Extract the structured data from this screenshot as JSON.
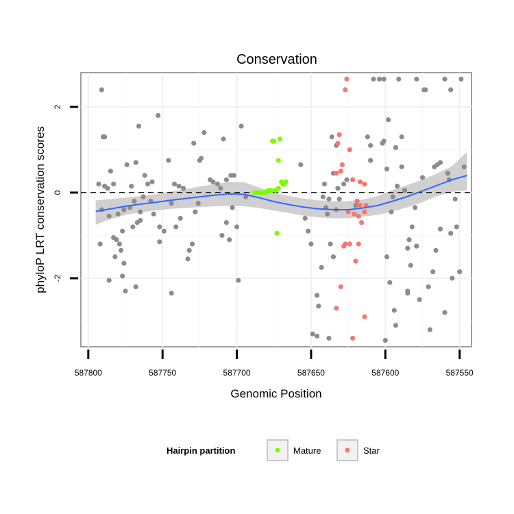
{
  "chart_data": {
    "type": "scatter",
    "title": "Conservation",
    "xlabel": "Genomic Position",
    "ylabel": "phyloP LRT conservation scores",
    "xlim": [
      587805,
      587542
    ],
    "ylim": [
      -3.6,
      2.8
    ],
    "x_reversed": true,
    "x_ticks": [
      587800,
      587750,
      587700,
      587650,
      587600,
      587550
    ],
    "x_tick_labels": [
      "587800",
      "587750",
      "587700",
      "587650",
      "587600",
      "587550"
    ],
    "y_ticks": [
      -2,
      0,
      2
    ],
    "y_tick_labels": [
      "-2",
      "0",
      "2"
    ],
    "reference_line_y": 0,
    "grid": true,
    "legend": {
      "title": "Hairpin partition",
      "position": "bottom",
      "entries": [
        {
          "label": "Mature",
          "color": "#7cfc00"
        },
        {
          "label": "Star",
          "color": "#f8766d"
        }
      ]
    },
    "colors": {
      "other": "#8c8c8c",
      "Mature": "#7cfc00",
      "Star": "#f8766d",
      "smooth": "#3366ff",
      "band": "#c8c8c8"
    },
    "series": [
      {
        "name": "",
        "group": "other",
        "points": [
          [
            587791,
            2.4
          ],
          [
            587790,
            1.3
          ],
          [
            587789,
            1.3
          ],
          [
            587793,
            0.2
          ],
          [
            587789,
            0.15
          ],
          [
            587787,
            0.1
          ],
          [
            587785,
            0.5
          ],
          [
            587783,
            0.2
          ],
          [
            587791,
            -0.4
          ],
          [
            587786,
            -0.55
          ],
          [
            587792,
            -1.2
          ],
          [
            587786,
            -2.05
          ],
          [
            587783,
            -1.05
          ],
          [
            587781,
            -1.1
          ],
          [
            587779,
            -1.2
          ],
          [
            587778,
            -1.35
          ],
          [
            587782,
            -1.5
          ],
          [
            587776,
            -1.65
          ],
          [
            587777,
            -1.95
          ],
          [
            587775,
            -2.3
          ],
          [
            587777,
            -0.9
          ],
          [
            587780,
            -0.5
          ],
          [
            587776,
            -0.4
          ],
          [
            587774,
            0.65
          ],
          [
            587771,
            0.15
          ],
          [
            587768,
            0.7
          ],
          [
            587766,
            1.55
          ],
          [
            587770,
            -0.8
          ],
          [
            587767,
            -0.7
          ],
          [
            587765,
            -0.65
          ],
          [
            587768,
            -2.2
          ],
          [
            587772,
            -0.35
          ],
          [
            587769,
            -0.2
          ],
          [
            587765,
            -0.45
          ],
          [
            587763,
            -0.1
          ],
          [
            587762,
            0.4
          ],
          [
            587760,
            0.2
          ],
          [
            587757,
            0.25
          ],
          [
            587753,
            1.8
          ],
          [
            587758,
            -0.2
          ],
          [
            587756,
            -0.5
          ],
          [
            587752,
            -0.8
          ],
          [
            587752,
            -1.15
          ],
          [
            587749,
            -0.9
          ],
          [
            587746,
            0.75
          ],
          [
            587744,
            -0.25
          ],
          [
            587742,
            0.2
          ],
          [
            587739,
            0.15
          ],
          [
            587736,
            0.1
          ],
          [
            587744,
            -2.35
          ],
          [
            587741,
            -0.8
          ],
          [
            587738,
            -0.6
          ],
          [
            587733,
            -1.55
          ],
          [
            587732,
            -1.35
          ],
          [
            587730,
            -1.2
          ],
          [
            587728,
            -0.45
          ],
          [
            587726,
            -0.25
          ],
          [
            587729,
            1.15
          ],
          [
            587725,
            0.75
          ],
          [
            587724,
            0.8
          ],
          [
            587722,
            1.4
          ],
          [
            587718,
            0.3
          ],
          [
            587716,
            0.25
          ],
          [
            587713,
            0.2
          ],
          [
            587711,
            0.1
          ],
          [
            587709,
            1.25
          ],
          [
            587707,
            0.3
          ],
          [
            587704,
            0.4
          ],
          [
            587702,
            0.4
          ],
          [
            587707,
            -0.7
          ],
          [
            587710,
            -1.0
          ],
          [
            587703,
            -0.35
          ],
          [
            587705,
            -1.1
          ],
          [
            587700,
            -0.8
          ],
          [
            587697,
            1.55
          ],
          [
            587699,
            -2.05
          ],
          [
            587694,
            -0.1
          ],
          [
            587657,
            0.65
          ],
          [
            587654,
            -0.6
          ],
          [
            587652,
            -0.9
          ],
          [
            587650,
            -1.2
          ],
          [
            587646,
            -2.4
          ],
          [
            587645,
            -2.65
          ],
          [
            587649,
            -3.3
          ],
          [
            587646,
            -3.35
          ],
          [
            587643,
            -1.75
          ],
          [
            587640,
            -0.35
          ],
          [
            587637,
            -1.2
          ],
          [
            587639,
            -0.5
          ],
          [
            587642,
            -0.1
          ],
          [
            587641,
            0.2
          ],
          [
            587638,
            -0.15
          ],
          [
            587635,
            -1.5
          ],
          [
            587638,
            -3.4
          ],
          [
            587633,
            -0.4
          ],
          [
            587632,
            0.1
          ],
          [
            587631,
            -0.15
          ],
          [
            587635,
            0.45
          ],
          [
            587633,
            1.1
          ],
          [
            587636,
            1.3
          ],
          [
            587628,
            0.2
          ],
          [
            587626,
            0.3
          ],
          [
            587612,
            1.3
          ],
          [
            587610,
            1.1
          ],
          [
            587608,
            2.65
          ],
          [
            587604,
            2.65
          ],
          [
            587602,
            1.15
          ],
          [
            587601,
            1.2
          ],
          [
            587598,
            1.7
          ],
          [
            587599,
            0.55
          ],
          [
            587596,
            -0.45
          ],
          [
            587599,
            -1.5
          ],
          [
            587597,
            -2.1
          ],
          [
            587594,
            -2.75
          ],
          [
            587593,
            -3.1
          ],
          [
            587600,
            -3.45
          ],
          [
            587592,
            0.15
          ],
          [
            587589,
            0.6
          ],
          [
            587587,
            0.05
          ],
          [
            587584,
            -1.1
          ],
          [
            587585,
            -1.3
          ],
          [
            587582,
            -0.8
          ],
          [
            587583,
            -1.7
          ],
          [
            587585,
            -2.35
          ],
          [
            587585,
            -2.3
          ],
          [
            587580,
            -0.35
          ],
          [
            587579,
            -1.25
          ],
          [
            587577,
            -2.5
          ],
          [
            587575,
            0.35
          ],
          [
            587573,
            2.4
          ],
          [
            587571,
            -2.2
          ],
          [
            587570,
            -3.2
          ],
          [
            587568,
            -1.85
          ],
          [
            587566,
            -1.35
          ],
          [
            587567,
            0.6
          ],
          [
            587565,
            0.65
          ],
          [
            587563,
            0.7
          ],
          [
            587563,
            -0.85
          ],
          [
            587560,
            2.65
          ],
          [
            587560,
            -2.8
          ],
          [
            587558,
            0.45
          ],
          [
            587557,
            0.3
          ],
          [
            587556,
            -0.95
          ],
          [
            587555,
            -2.0
          ],
          [
            587553,
            -0.15
          ],
          [
            587552,
            -0.8
          ],
          [
            587550,
            -1.85
          ],
          [
            587549,
            2.65
          ],
          [
            587547,
            0.6
          ],
          [
            587589,
            1.3
          ],
          [
            587593,
            1.05
          ],
          [
            587601,
            2.65
          ],
          [
            587591,
            2.65
          ],
          [
            587579,
            2.65
          ],
          [
            587574,
            2.4
          ],
          [
            587556,
            2.4
          ],
          [
            587610,
            0.75
          ],
          [
            587595,
            -0.1
          ],
          [
            587620,
            -0.3
          ]
        ]
      },
      {
        "name": "Mature",
        "group": "Mature",
        "points": [
          [
            587676,
            1.2
          ],
          [
            587675,
            1.2
          ],
          [
            587671,
            1.25
          ],
          [
            587672,
            0.75
          ],
          [
            587670,
            0.25
          ],
          [
            587668,
            0.2
          ],
          [
            587667,
            0.25
          ],
          [
            587669,
            0.2
          ],
          [
            587672,
            0.1
          ],
          [
            587674,
            0.05
          ],
          [
            587677,
            0.05
          ],
          [
            587679,
            0.05
          ],
          [
            587681,
            0.0
          ],
          [
            587683,
            0.0
          ],
          [
            587686,
            0.0
          ],
          [
            587688,
            0.0
          ],
          [
            587673,
            -0.95
          ]
        ]
      },
      {
        "name": "Star",
        "group": "Star",
        "points": [
          [
            587626,
            2.65
          ],
          [
            587627,
            2.4
          ],
          [
            587631,
            1.35
          ],
          [
            587632,
            1.15
          ],
          [
            587624,
            1.0
          ],
          [
            587629,
            0.65
          ],
          [
            587630,
            0.5
          ],
          [
            587633,
            0.45
          ],
          [
            587622,
            0.3
          ],
          [
            587617,
            0.25
          ],
          [
            587614,
            0.2
          ],
          [
            587619,
            -0.2
          ],
          [
            587617,
            -0.3
          ],
          [
            587621,
            -0.5
          ],
          [
            587618,
            -0.55
          ],
          [
            587616,
            -0.7
          ],
          [
            587614,
            -0.45
          ],
          [
            587613,
            -0.3
          ],
          [
            587628,
            -1.25
          ],
          [
            587627,
            -1.2
          ],
          [
            587624,
            -1.2
          ],
          [
            587618,
            -1.2
          ],
          [
            587620,
            -1.6
          ],
          [
            587630,
            -2.2
          ],
          [
            587633,
            -2.7
          ],
          [
            587614,
            -2.9
          ],
          [
            587622,
            -3.4
          ],
          [
            587625,
            -0.45
          ]
        ]
      }
    ],
    "smooth_line": [
      [
        587795,
        -0.44
      ],
      [
        587785,
        -0.38
      ],
      [
        587775,
        -0.32
      ],
      [
        587765,
        -0.27
      ],
      [
        587755,
        -0.23
      ],
      [
        587745,
        -0.18
      ],
      [
        587735,
        -0.14
      ],
      [
        587725,
        -0.1
      ],
      [
        587715,
        -0.06
      ],
      [
        587705,
        -0.03
      ],
      [
        587695,
        -0.04
      ],
      [
        587685,
        -0.12
      ],
      [
        587675,
        -0.21
      ],
      [
        587665,
        -0.28
      ],
      [
        587655,
        -0.34
      ],
      [
        587645,
        -0.38
      ],
      [
        587635,
        -0.4
      ],
      [
        587625,
        -0.4
      ],
      [
        587615,
        -0.36
      ],
      [
        587605,
        -0.3
      ],
      [
        587595,
        -0.2
      ],
      [
        587585,
        -0.09
      ],
      [
        587575,
        0.04
      ],
      [
        587565,
        0.17
      ],
      [
        587555,
        0.3
      ],
      [
        587545,
        0.4
      ]
    ],
    "smooth_band_upper": [
      [
        587795,
        -0.18
      ],
      [
        587785,
        -0.15
      ],
      [
        587775,
        -0.12
      ],
      [
        587765,
        -0.08
      ],
      [
        587755,
        -0.04
      ],
      [
        587745,
        0.02
      ],
      [
        587735,
        0.08
      ],
      [
        587725,
        0.14
      ],
      [
        587715,
        0.2
      ],
      [
        587705,
        0.25
      ],
      [
        587695,
        0.24
      ],
      [
        587685,
        0.12
      ],
      [
        587675,
        0.0
      ],
      [
        587665,
        -0.08
      ],
      [
        587655,
        -0.14
      ],
      [
        587645,
        -0.18
      ],
      [
        587635,
        -0.2
      ],
      [
        587625,
        -0.2
      ],
      [
        587615,
        -0.16
      ],
      [
        587605,
        -0.08
      ],
      [
        587595,
        0.06
      ],
      [
        587585,
        0.18
      ],
      [
        587575,
        0.3
      ],
      [
        587565,
        0.45
      ],
      [
        587555,
        0.62
      ],
      [
        587545,
        0.95
      ]
    ],
    "smooth_band_lower": [
      [
        587795,
        -0.75
      ],
      [
        587785,
        -0.62
      ],
      [
        587775,
        -0.52
      ],
      [
        587765,
        -0.46
      ],
      [
        587755,
        -0.42
      ],
      [
        587745,
        -0.38
      ],
      [
        587735,
        -0.36
      ],
      [
        587725,
        -0.34
      ],
      [
        587715,
        -0.32
      ],
      [
        587705,
        -0.31
      ],
      [
        587695,
        -0.32
      ],
      [
        587685,
        -0.36
      ],
      [
        587675,
        -0.42
      ],
      [
        587665,
        -0.48
      ],
      [
        587655,
        -0.54
      ],
      [
        587645,
        -0.58
      ],
      [
        587635,
        -0.6
      ],
      [
        587625,
        -0.6
      ],
      [
        587615,
        -0.56
      ],
      [
        587605,
        -0.52
      ],
      [
        587595,
        -0.44
      ],
      [
        587585,
        -0.34
      ],
      [
        587575,
        -0.22
      ],
      [
        587565,
        -0.08
      ],
      [
        587555,
        0.02
      ],
      [
        587545,
        0.05
      ]
    ]
  }
}
